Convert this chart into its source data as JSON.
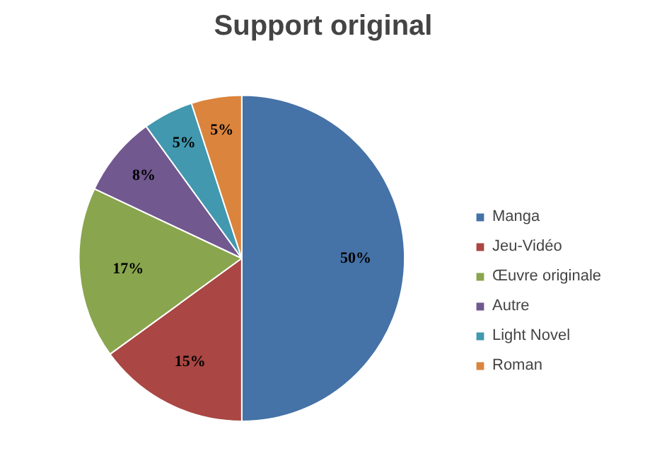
{
  "chart_data": {
    "type": "pie",
    "title": "Support original",
    "categories": [
      "Manga",
      "Jeu-Vidéo",
      "Œuvre originale",
      "Autre",
      "Light Novel",
      "Roman"
    ],
    "values": [
      50,
      15,
      17,
      8,
      5,
      5
    ],
    "colors": [
      "#4572a7",
      "#aa4643",
      "#89a54e",
      "#71588f",
      "#4198af",
      "#db843d"
    ],
    "value_labels": [
      "50%",
      "15%",
      "17%",
      "8%",
      "5%",
      "5%"
    ],
    "legend": "right"
  }
}
